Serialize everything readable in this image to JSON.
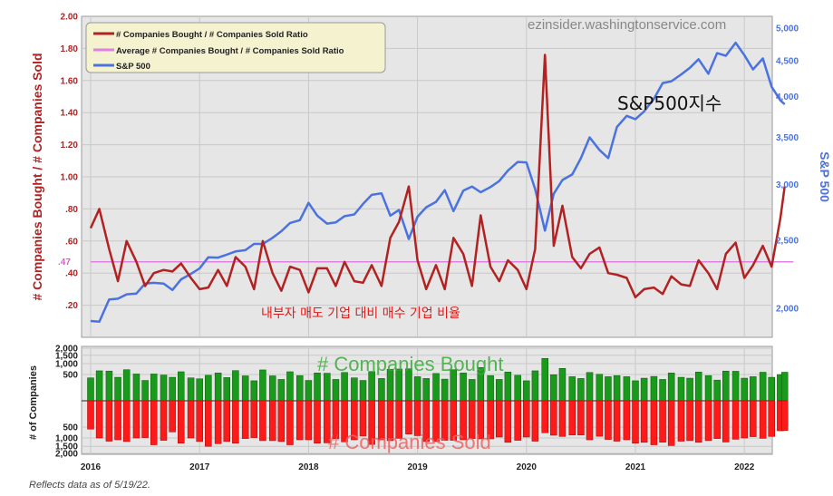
{
  "watermark": "ezinsider.washingtonservice.com",
  "overlay_sp_label": "S&P500지수",
  "overlay_ratio_label": "내부자 매도 기업 대비 매수 기업 비율",
  "footnote": "Reflects data as of 5/19/22.",
  "colors": {
    "ratio": "#b22222",
    "average": "#e080e0",
    "sp500": "#4a72e0",
    "bought": "#1a9a1a",
    "sold": "#ff1a1a",
    "plot_bg": "#e6e6e6",
    "legend_bg": "#f5f2d0",
    "left_axis": "#b22222",
    "right_axis": "#4a72e0"
  },
  "chart_data": [
    {
      "type": "line",
      "title": "",
      "ylabel": "# Companies Bought / # Companies Sold",
      "y2label": "S&P 500",
      "ylim": [
        0,
        2
      ],
      "y2lim": [
        1820,
        5200
      ],
      "y2scale": "log",
      "xlim": [
        2016.0,
        2022.45
      ],
      "grid": true,
      "legend_position": "top-left",
      "yticks": [
        0.2,
        0.4,
        0.6,
        0.8,
        1.0,
        1.2,
        1.4,
        1.6,
        1.8,
        2.0
      ],
      "ytick_labels": [
        ".20",
        ".40",
        ".60",
        ".80",
        "1.00",
        "1.20",
        "1.40",
        "1.60",
        "1.80",
        "2.00"
      ],
      "y2ticks": [
        2000,
        2500,
        3000,
        3500,
        4000,
        4500,
        5000
      ],
      "y2tick_labels": [
        "2,000",
        "2,500",
        "3,000",
        "3,500",
        "4,000",
        "4,500",
        "5,000"
      ],
      "xticks": [
        2016,
        2017,
        2018,
        2019,
        2020,
        2021,
        2022
      ],
      "xtick_labels": [
        "2016",
        "2017",
        "2018",
        "2019",
        "2020",
        "2021",
        "2022"
      ],
      "average_label": ".47",
      "series": [
        {
          "name": "# Companies Bought / # Companies Sold Ratio",
          "axis": "left",
          "x": [
            2016.0,
            2016.08,
            2016.17,
            2016.25,
            2016.33,
            2016.42,
            2016.5,
            2016.58,
            2016.67,
            2016.75,
            2016.83,
            2016.92,
            2017.0,
            2017.08,
            2017.17,
            2017.25,
            2017.33,
            2017.42,
            2017.5,
            2017.58,
            2017.67,
            2017.75,
            2017.83,
            2017.92,
            2018.0,
            2018.08,
            2018.17,
            2018.25,
            2018.33,
            2018.42,
            2018.5,
            2018.58,
            2018.67,
            2018.75,
            2018.83,
            2018.92,
            2019.0,
            2019.08,
            2019.17,
            2019.25,
            2019.33,
            2019.42,
            2019.5,
            2019.58,
            2019.67,
            2019.75,
            2019.83,
            2019.92,
            2020.0,
            2020.08,
            2020.17,
            2020.25,
            2020.33,
            2020.42,
            2020.5,
            2020.58,
            2020.67,
            2020.75,
            2020.83,
            2020.92,
            2021.0,
            2021.08,
            2021.17,
            2021.25,
            2021.33,
            2021.42,
            2021.5,
            2021.58,
            2021.67,
            2021.75,
            2021.83,
            2021.92,
            2022.0,
            2022.08,
            2022.17,
            2022.25,
            2022.33,
            2022.37
          ],
          "values": [
            0.68,
            0.8,
            0.55,
            0.35,
            0.6,
            0.47,
            0.32,
            0.4,
            0.42,
            0.41,
            0.46,
            0.37,
            0.3,
            0.31,
            0.42,
            0.32,
            0.5,
            0.44,
            0.3,
            0.6,
            0.4,
            0.29,
            0.44,
            0.42,
            0.28,
            0.43,
            0.43,
            0.32,
            0.47,
            0.35,
            0.34,
            0.45,
            0.32,
            0.62,
            0.72,
            0.94,
            0.48,
            0.3,
            0.45,
            0.3,
            0.62,
            0.52,
            0.32,
            0.76,
            0.44,
            0.35,
            0.48,
            0.42,
            0.3,
            0.55,
            1.76,
            0.57,
            0.82,
            0.5,
            0.43,
            0.52,
            0.56,
            0.4,
            0.39,
            0.37,
            0.25,
            0.3,
            0.31,
            0.27,
            0.38,
            0.33,
            0.32,
            0.48,
            0.4,
            0.3,
            0.52,
            0.59,
            0.37,
            0.45,
            0.57,
            0.44,
            0.74,
            0.94
          ]
        },
        {
          "name": "Average # Companies Bought / # Companies Sold Ratio",
          "axis": "left",
          "x": [
            2016.0,
            2022.45
          ],
          "values": [
            0.47,
            0.47
          ]
        },
        {
          "name": "S&P 500",
          "axis": "right",
          "x": [
            2016.0,
            2016.08,
            2016.17,
            2016.25,
            2016.33,
            2016.42,
            2016.5,
            2016.58,
            2016.67,
            2016.75,
            2016.83,
            2016.92,
            2017.0,
            2017.08,
            2017.17,
            2017.25,
            2017.33,
            2017.42,
            2017.5,
            2017.58,
            2017.67,
            2017.75,
            2017.83,
            2017.92,
            2018.0,
            2018.08,
            2018.17,
            2018.25,
            2018.33,
            2018.42,
            2018.5,
            2018.58,
            2018.67,
            2018.75,
            2018.83,
            2018.92,
            2019.0,
            2019.08,
            2019.17,
            2019.25,
            2019.33,
            2019.42,
            2019.5,
            2019.58,
            2019.67,
            2019.75,
            2019.83,
            2019.92,
            2020.0,
            2020.08,
            2020.17,
            2020.25,
            2020.33,
            2020.42,
            2020.5,
            2020.58,
            2020.67,
            2020.75,
            2020.83,
            2020.92,
            2021.0,
            2021.08,
            2021.17,
            2021.25,
            2021.33,
            2021.42,
            2021.5,
            2021.58,
            2021.67,
            2021.75,
            2021.83,
            2021.92,
            2022.0,
            2022.08,
            2022.17,
            2022.25,
            2022.33,
            2022.37
          ],
          "values": [
            1920,
            1915,
            2060,
            2065,
            2095,
            2100,
            2170,
            2175,
            2170,
            2125,
            2200,
            2240,
            2280,
            2365,
            2362,
            2385,
            2410,
            2420,
            2470,
            2470,
            2520,
            2575,
            2645,
            2670,
            2825,
            2710,
            2640,
            2650,
            2705,
            2720,
            2815,
            2900,
            2915,
            2710,
            2760,
            2510,
            2700,
            2785,
            2835,
            2945,
            2750,
            2940,
            2980,
            2925,
            2975,
            3035,
            3140,
            3230,
            3225,
            2955,
            2580,
            2910,
            3045,
            3100,
            3270,
            3500,
            3360,
            3270,
            3620,
            3755,
            3715,
            3810,
            3970,
            4180,
            4205,
            4300,
            4395,
            4520,
            4310,
            4610,
            4570,
            4770,
            4580,
            4370,
            4530,
            4130,
            3950,
            3900
          ]
        }
      ]
    },
    {
      "type": "bar",
      "title": "",
      "ylabel": "# of Companies",
      "yticks_top": [
        500,
        1000,
        1500,
        2000
      ],
      "yticks_top_labels": [
        "500",
        "1,000",
        "1,500",
        "2,000"
      ],
      "yticks_bottom": [
        500,
        1000,
        1500,
        2000
      ],
      "yticks_bottom_labels": [
        "500",
        "1,000",
        "1,500",
        "2,000"
      ],
      "yscale": "sqrt",
      "xticks": [
        2016,
        2017,
        2018,
        2019,
        2020,
        2021,
        2022
      ],
      "xtick_labels": [
        "2016",
        "2017",
        "2018",
        "2019",
        "2020",
        "2021",
        "2022"
      ],
      "series": [
        {
          "name": "# Companies Bought",
          "direction": "up",
          "values": [
            380,
            650,
            640,
            400,
            700,
            520,
            300,
            520,
            480,
            400,
            610,
            380,
            350,
            470,
            560,
            390,
            660,
            450,
            290,
            690,
            450,
            330,
            610,
            460,
            300,
            560,
            550,
            330,
            580,
            380,
            300,
            620,
            360,
            720,
            730,
            740,
            420,
            360,
            540,
            340,
            700,
            560,
            330,
            800,
            460,
            330,
            600,
            470,
            290,
            650,
            1300,
            490,
            760,
            420,
            360,
            580,
            510,
            420,
            460,
            420,
            290,
            370,
            430,
            330,
            560,
            400,
            370,
            600,
            460,
            310,
            640,
            630,
            370,
            420,
            590,
            400,
            500,
            590
          ]
        },
        {
          "name": "# Companies Sold",
          "direction": "down",
          "values": [
            580,
            1000,
            1180,
            1100,
            1200,
            1000,
            980,
            1400,
            1130,
            700,
            1300,
            1000,
            1200,
            1500,
            1330,
            1200,
            1300,
            1030,
            980,
            1150,
            1150,
            1200,
            1400,
            1100,
            1100,
            1300,
            1280,
            1030,
            1220,
            1100,
            900,
            1380,
            1100,
            1150,
            1020,
            800,
            880,
            1200,
            1200,
            1130,
            1130,
            1100,
            1030,
            1050,
            1050,
            950,
            1250,
            1130,
            950,
            1180,
            740,
            860,
            920,
            850,
            850,
            1100,
            910,
            1080,
            1180,
            1100,
            1300,
            1250,
            1400,
            1240,
            1450,
            1180,
            1150,
            1250,
            1150,
            1030,
            1230,
            1070,
            1000,
            930,
            1020,
            920,
            650,
            640
          ]
        }
      ],
      "overlay_labels": {
        "bought": "# Companies Bought",
        "sold": "# Companies Sold"
      }
    }
  ]
}
